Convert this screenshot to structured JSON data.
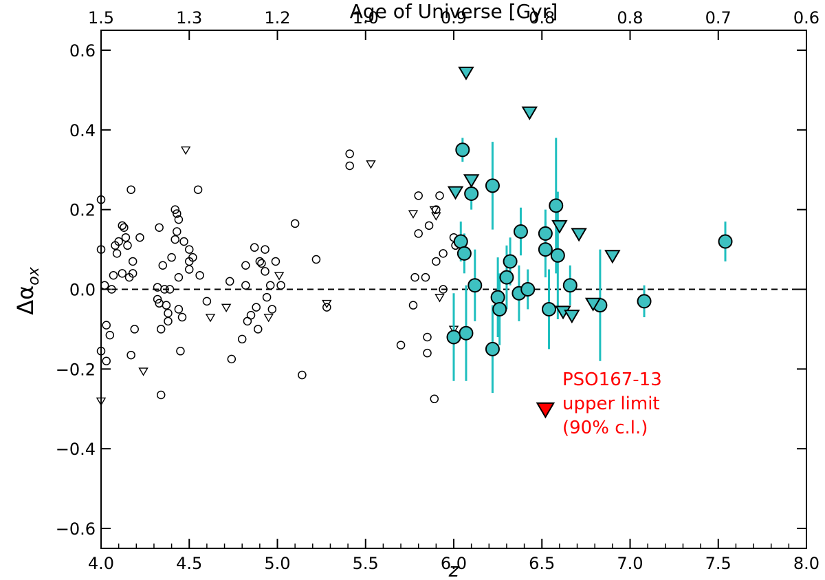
{
  "chart_data": {
    "type": "scatter",
    "xlabel": "z",
    "ylabel_main": "Δα",
    "ylabel_sub": "ox",
    "top_axis_label": "Age of Universe [Gyr]",
    "xlim": [
      4.0,
      8.0
    ],
    "ylim": [
      -0.65,
      0.65
    ],
    "x_ticks": [
      "4.0",
      "4.5",
      "5.0",
      "5.5",
      "6.0",
      "6.5",
      "7.0",
      "7.5",
      "8.0"
    ],
    "y_ticks": [
      "−0.6",
      "−0.4",
      "−0.2",
      "0.0",
      "0.2",
      "0.4",
      "0.6"
    ],
    "top_ticks": [
      {
        "z": 4.0,
        "label": "1.5"
      },
      {
        "z": 4.5,
        "label": "1.3"
      },
      {
        "z": 5.0,
        "label": "1.2"
      },
      {
        "z": 5.5,
        "label": "1.0"
      },
      {
        "z": 6.0,
        "label": "0.9"
      },
      {
        "z": 6.5,
        "label": "0.8"
      },
      {
        "z": 7.0,
        "label": "0.8"
      },
      {
        "z": 7.5,
        "label": "0.7"
      },
      {
        "z": 8.0,
        "label": "0.6"
      }
    ],
    "reference_line": {
      "y": 0.0,
      "style": "dashed"
    },
    "colors": {
      "highz": "#3ec1c1",
      "errorbar": "#1fbfbf",
      "highlight": "#ff0000",
      "literature": "#000000"
    },
    "literature_detections": [
      [
        4.0,
        0.225
      ],
      [
        4.0,
        0.1
      ],
      [
        4.0,
        -0.155
      ],
      [
        4.02,
        0.01
      ],
      [
        4.03,
        -0.18
      ],
      [
        4.03,
        -0.09
      ],
      [
        4.05,
        -0.115
      ],
      [
        4.06,
        0.0
      ],
      [
        4.07,
        0.035
      ],
      [
        4.08,
        0.11
      ],
      [
        4.09,
        0.09
      ],
      [
        4.1,
        0.12
      ],
      [
        4.12,
        0.16
      ],
      [
        4.12,
        0.04
      ],
      [
        4.13,
        0.155
      ],
      [
        4.14,
        0.13
      ],
      [
        4.15,
        0.11
      ],
      [
        4.16,
        0.03
      ],
      [
        4.17,
        0.25
      ],
      [
        4.17,
        -0.165
      ],
      [
        4.18,
        0.07
      ],
      [
        4.18,
        0.04
      ],
      [
        4.19,
        -0.1
      ],
      [
        4.22,
        0.13
      ],
      [
        4.32,
        0.005
      ],
      [
        4.32,
        -0.025
      ],
      [
        4.33,
        0.155
      ],
      [
        4.33,
        -0.035
      ],
      [
        4.34,
        -0.1
      ],
      [
        4.34,
        -0.265
      ],
      [
        4.35,
        0.06
      ],
      [
        4.36,
        0.0
      ],
      [
        4.37,
        -0.04
      ],
      [
        4.38,
        -0.08
      ],
      [
        4.38,
        -0.06
      ],
      [
        4.39,
        0.0
      ],
      [
        4.4,
        0.08
      ],
      [
        4.42,
        0.125
      ],
      [
        4.42,
        0.2
      ],
      [
        4.43,
        0.19
      ],
      [
        4.43,
        0.145
      ],
      [
        4.44,
        0.175
      ],
      [
        4.44,
        -0.05
      ],
      [
        4.44,
        0.03
      ],
      [
        4.45,
        -0.155
      ],
      [
        4.46,
        -0.07
      ],
      [
        4.47,
        0.12
      ],
      [
        4.5,
        0.1
      ],
      [
        4.5,
        0.07
      ],
      [
        4.5,
        0.05
      ],
      [
        4.52,
        0.08
      ],
      [
        4.55,
        0.25
      ],
      [
        4.56,
        0.035
      ],
      [
        4.6,
        -0.03
      ],
      [
        4.73,
        0.02
      ],
      [
        4.74,
        -0.175
      ],
      [
        4.8,
        -0.125
      ],
      [
        4.82,
        0.06
      ],
      [
        4.82,
        0.01
      ],
      [
        4.83,
        -0.08
      ],
      [
        4.85,
        -0.065
      ],
      [
        4.87,
        0.105
      ],
      [
        4.88,
        -0.045
      ],
      [
        4.89,
        -0.1
      ],
      [
        4.9,
        0.07
      ],
      [
        4.91,
        0.065
      ],
      [
        4.93,
        0.045
      ],
      [
        4.93,
        0.1
      ],
      [
        4.94,
        -0.02
      ],
      [
        4.96,
        0.01
      ],
      [
        4.97,
        -0.05
      ],
      [
        4.99,
        0.07
      ],
      [
        5.02,
        0.01
      ],
      [
        5.1,
        0.165
      ],
      [
        5.14,
        -0.215
      ],
      [
        5.22,
        0.075
      ],
      [
        5.28,
        -0.045
      ],
      [
        5.41,
        0.34
      ],
      [
        5.41,
        0.31
      ],
      [
        5.7,
        -0.14
      ],
      [
        5.77,
        -0.04
      ],
      [
        5.78,
        0.03
      ],
      [
        5.8,
        0.235
      ],
      [
        5.8,
        0.14
      ],
      [
        5.84,
        0.03
      ],
      [
        5.85,
        -0.12
      ],
      [
        5.85,
        -0.16
      ],
      [
        5.86,
        0.16
      ],
      [
        5.89,
        -0.275
      ],
      [
        5.9,
        0.07
      ],
      [
        5.9,
        0.2
      ],
      [
        5.92,
        0.235
      ],
      [
        5.94,
        0.09
      ],
      [
        5.94,
        0.0
      ],
      [
        6.0,
        0.13
      ],
      [
        6.01,
        0.11
      ]
    ],
    "literature_upper_limits": [
      [
        4.0,
        -0.28
      ],
      [
        4.24,
        -0.205
      ],
      [
        4.48,
        0.35
      ],
      [
        4.62,
        -0.07
      ],
      [
        4.71,
        -0.045
      ],
      [
        4.95,
        -0.07
      ],
      [
        5.01,
        0.035
      ],
      [
        5.28,
        -0.035
      ],
      [
        5.53,
        0.315
      ],
      [
        5.77,
        0.19
      ],
      [
        5.89,
        0.2
      ],
      [
        5.9,
        0.185
      ],
      [
        5.92,
        -0.02
      ],
      [
        6.0,
        -0.1
      ]
    ],
    "highz_detections": [
      {
        "z": 6.0,
        "y": -0.12,
        "err": 0.11
      },
      {
        "z": 6.04,
        "y": 0.12,
        "err": 0.05
      },
      {
        "z": 6.05,
        "y": 0.35,
        "err": 0.03
      },
      {
        "z": 6.06,
        "y": 0.09,
        "err": 0.05
      },
      {
        "z": 6.07,
        "y": -0.11,
        "err": 0.12
      },
      {
        "z": 6.1,
        "y": 0.24,
        "err": 0.04
      },
      {
        "z": 6.12,
        "y": 0.01,
        "err": 0.09
      },
      {
        "z": 6.22,
        "y": 0.26,
        "err": 0.11
      },
      {
        "z": 6.22,
        "y": -0.15,
        "err": 0.11
      },
      {
        "z": 6.25,
        "y": -0.02,
        "err": 0.1
      },
      {
        "z": 6.26,
        "y": -0.05,
        "err": 0.09
      },
      {
        "z": 6.3,
        "y": 0.03,
        "err": 0.08
      },
      {
        "z": 6.32,
        "y": 0.07,
        "err": 0.06
      },
      {
        "z": 6.37,
        "y": -0.01,
        "err": 0.07
      },
      {
        "z": 6.38,
        "y": 0.145,
        "err": 0.06
      },
      {
        "z": 6.42,
        "y": 0.0,
        "err": 0.05
      },
      {
        "z": 6.52,
        "y": 0.14,
        "err": 0.06
      },
      {
        "z": 6.52,
        "y": 0.1,
        "err": 0.07
      },
      {
        "z": 6.54,
        "y": -0.05,
        "err": 0.1
      },
      {
        "z": 6.58,
        "y": 0.21,
        "err": 0.17
      },
      {
        "z": 6.59,
        "y": 0.085,
        "err": 0.16
      },
      {
        "z": 6.66,
        "y": 0.01,
        "err": 0.05
      },
      {
        "z": 6.83,
        "y": -0.04,
        "err": 0.14
      },
      {
        "z": 7.08,
        "y": -0.03,
        "err": 0.04
      },
      {
        "z": 7.54,
        "y": 0.12,
        "err": 0.05
      }
    ],
    "highz_upper_limits": [
      [
        6.01,
        0.245
      ],
      [
        6.07,
        0.545
      ],
      [
        6.1,
        0.275
      ],
      [
        6.43,
        0.445
      ],
      [
        6.6,
        0.16
      ],
      [
        6.62,
        -0.055
      ],
      [
        6.67,
        -0.065
      ],
      [
        6.71,
        0.14
      ],
      [
        6.79,
        -0.035
      ],
      [
        6.9,
        0.085
      ]
    ],
    "highlight": {
      "name": "PSO167-13",
      "z": 6.52,
      "y": -0.3,
      "kind": "upper_limit"
    },
    "annotation": [
      "PSO167-13",
      "upper limit",
      "(90% c.l.)"
    ]
  }
}
